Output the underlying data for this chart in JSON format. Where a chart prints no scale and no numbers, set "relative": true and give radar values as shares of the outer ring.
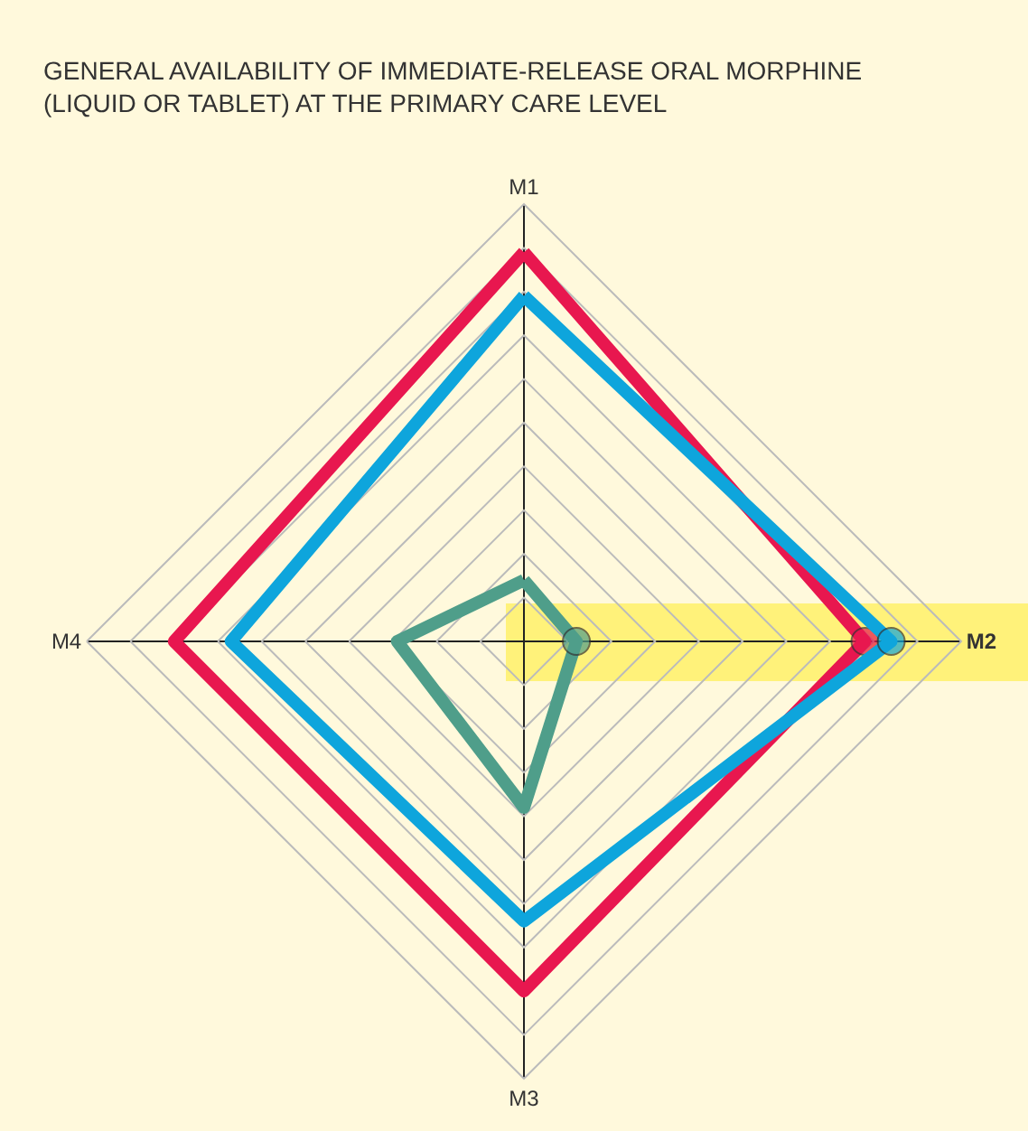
{
  "chart_data": {
    "type": "radar",
    "title": "GENERAL AVAILABILITY OF IMMEDIATE-RELEASE ORAL MORPHINE (LIQUID OR TABLET) AT THE PRIMARY CARE LEVEL",
    "categories": [
      "M1",
      "M2",
      "M3",
      "M4"
    ],
    "relative": true,
    "grid": true,
    "marker": "circle",
    "series": [
      {
        "color": "#e8174f",
        "values": [
          0.89,
          0.78,
          0.8,
          0.8
        ]
      },
      {
        "color": "#0ea5dc",
        "values": [
          0.79,
          0.84,
          0.64,
          0.67
        ]
      },
      {
        "color": "#4f9e8a",
        "values": [
          0.14,
          0.12,
          0.38,
          0.29
        ]
      }
    ]
  }
}
